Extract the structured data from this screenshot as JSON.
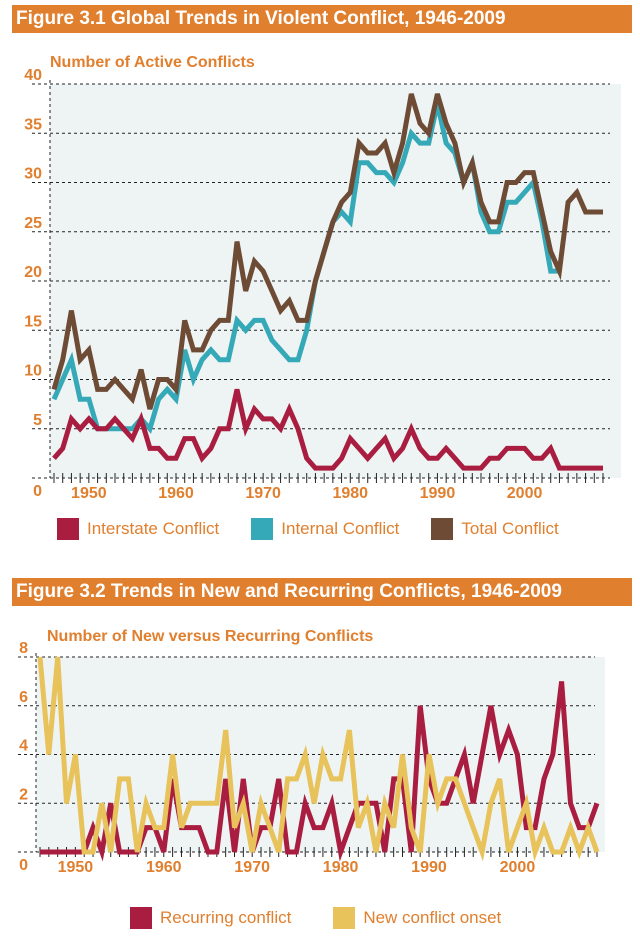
{
  "chart_data": [
    {
      "type": "line",
      "title": "Figure 3.1  Global Trends in Violent Conflict, 1946-2009",
      "ylabel": "Number of Active Conflicts",
      "xlabel": "",
      "x_start": 1946,
      "x_end": 2009,
      "xlim": [
        1946,
        2009
      ],
      "ylim": [
        0,
        40
      ],
      "xticks": [
        "1950",
        "1960",
        "1970",
        "1980",
        "1990",
        "2000"
      ],
      "yticks": [
        "0",
        "5",
        "10",
        "15",
        "20",
        "25",
        "30",
        "35",
        "40"
      ],
      "grid": true,
      "legend": "bottom",
      "series": [
        {
          "name": "Interstate Conflict",
          "color": "#a91e40",
          "values": [
            2,
            3,
            6,
            5,
            6,
            5,
            5,
            6,
            5,
            4,
            6,
            3,
            3,
            2,
            2,
            4,
            4,
            2,
            3,
            5,
            5,
            9,
            5,
            7,
            6,
            6,
            5,
            7,
            5,
            2,
            1,
            1,
            1,
            2,
            4,
            3,
            2,
            3,
            4,
            2,
            3,
            5,
            3,
            2,
            2,
            3,
            2,
            1,
            1,
            1,
            2,
            2,
            3,
            3,
            3,
            2,
            2,
            3,
            1,
            1,
            1,
            1,
            1,
            1
          ]
        },
        {
          "name": "Internal Conflict",
          "color": "#35a9b7",
          "values": [
            8,
            10,
            12,
            8,
            8,
            5,
            5,
            5,
            5,
            5,
            6,
            5,
            8,
            9,
            8,
            13,
            10,
            12,
            13,
            12,
            12,
            16,
            15,
            16,
            16,
            14,
            13,
            12,
            12,
            15,
            20,
            23,
            26,
            27,
            26,
            32,
            32,
            31,
            31,
            30,
            32,
            35,
            34,
            34,
            38,
            34,
            33,
            30,
            32,
            27,
            25,
            25,
            28,
            28,
            29,
            30,
            26,
            21,
            21,
            null,
            null,
            null,
            null,
            null
          ]
        },
        {
          "name": "Total Conflict",
          "color": "#6e4b35",
          "values": [
            9,
            12,
            17,
            12,
            13,
            9,
            9,
            10,
            9,
            8,
            11,
            7,
            10,
            10,
            9,
            16,
            13,
            13,
            15,
            16,
            16,
            24,
            19,
            22,
            21,
            19,
            17,
            18,
            16,
            16,
            20,
            23,
            26,
            28,
            29,
            34,
            33,
            33,
            34,
            31,
            34,
            39,
            36,
            35,
            39,
            36,
            34,
            30,
            32,
            28,
            26,
            26,
            30,
            30,
            31,
            31,
            27,
            23,
            21,
            28,
            29,
            27,
            27,
            27
          ]
        }
      ]
    },
    {
      "type": "line",
      "title": "Figure 3.2 Trends in New and Recurring Conflicts, 1946-2009",
      "ylabel": "Number of New versus Recurring Conflicts",
      "xlabel": "",
      "x_start": 1946,
      "x_end": 2009,
      "xlim": [
        1946,
        2009
      ],
      "ylim": [
        0,
        8
      ],
      "xticks": [
        "1950",
        "1960",
        "1970",
        "1980",
        "1990",
        "2000"
      ],
      "yticks": [
        "0",
        "2",
        "4",
        "6",
        "8"
      ],
      "grid": true,
      "legend": "bottom",
      "series": [
        {
          "name": "Recurring conflict",
          "color": "#a91e40",
          "values": [
            0,
            0,
            0,
            0,
            0,
            0,
            1,
            0,
            2,
            0,
            0,
            0,
            1,
            1,
            0,
            3,
            1,
            1,
            1,
            0,
            0,
            3,
            0,
            3,
            0,
            1,
            1,
            3,
            0,
            0,
            2,
            1,
            1,
            2,
            0,
            1,
            2,
            2,
            2,
            0,
            3,
            3,
            0,
            6,
            3,
            2,
            2,
            3,
            4,
            2,
            4,
            6,
            4,
            5,
            4,
            1,
            1,
            3,
            4,
            7,
            2,
            1,
            1,
            2
          ]
        },
        {
          "name": "New conflict onset",
          "color": "#e8c25a",
          "values": [
            8,
            4,
            8,
            2,
            4,
            0,
            0,
            2,
            0,
            3,
            3,
            0,
            2,
            1,
            1,
            4,
            1,
            2,
            2,
            2,
            2,
            5,
            1,
            2,
            0,
            2,
            1,
            0,
            3,
            3,
            4,
            2,
            4,
            3,
            3,
            5,
            1,
            2,
            0,
            2,
            1,
            4,
            1,
            0,
            4,
            2,
            3,
            3,
            2,
            1,
            0,
            2,
            3,
            0,
            1,
            2,
            0,
            1,
            0,
            0,
            1,
            0,
            1,
            0
          ]
        }
      ]
    }
  ]
}
